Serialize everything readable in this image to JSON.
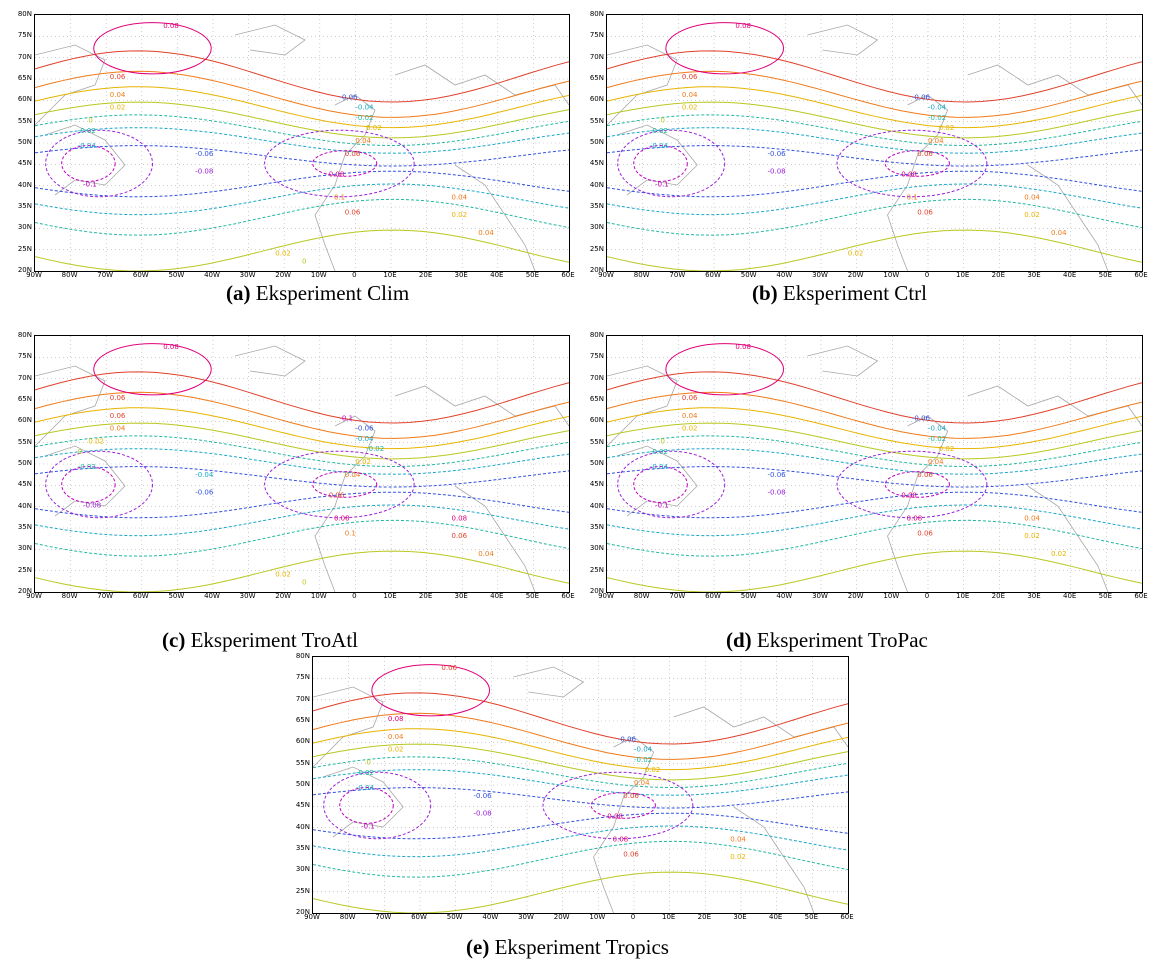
{
  "axes": {
    "lat_labels": [
      "80N",
      "75N",
      "70N",
      "65N",
      "60N",
      "55N",
      "50N",
      "45N",
      "40N",
      "35N",
      "30N",
      "25N",
      "20N"
    ],
    "lon_labels": [
      "90W",
      "80W",
      "70W",
      "60W",
      "50W",
      "40W",
      "30W",
      "20W",
      "10W",
      "0",
      "10E",
      "20E",
      "30E",
      "40E",
      "50E",
      "60E"
    ]
  },
  "contour_colors": {
    "0.08": "#e0007a",
    "0.06": "#e0402a",
    "0.04": "#f07a1a",
    "0.02": "#e8b400",
    "0": "#b8c820",
    "-0.02": "#20b8a0",
    "-0.04": "#18a8c8",
    "-0.06": "#3050e0",
    "-0.08": "#9a20d8",
    "-0.1": "#c000c0"
  },
  "panels": [
    {
      "id": "a",
      "tag": "(a)",
      "title": "Eksperiment Clim",
      "labels": [
        "0.08",
        "0.06",
        "0.04",
        "0.02",
        "0",
        "-0.02",
        "-0.04",
        "-0.06",
        "-0.08",
        "-0.1",
        "-0.06",
        "-0.04",
        "-0.02",
        "0.02",
        "0.04",
        "0.06",
        "0.08",
        "0.1",
        "0.06",
        "0.04",
        "0.02",
        "0.04",
        "0.02",
        "0"
      ]
    },
    {
      "id": "b",
      "tag": "(b)",
      "title": "Eksperiment Ctrl",
      "labels": [
        "0.08",
        "0.06",
        "0.04",
        "0.02",
        "0",
        "-0.02",
        "-0.04",
        "-0.06",
        "-0.08",
        "-0.1",
        "-0.06",
        "-0.04",
        "-0.02",
        "0.02",
        "0.04",
        "0.06",
        "0.08",
        "0.1",
        "0.06",
        "0.04",
        "0.02",
        "0.04",
        "0.02"
      ]
    },
    {
      "id": "c",
      "tag": "(c)",
      "title": "Eksperiment TroAtl",
      "labels": [
        "0.08",
        "0.06",
        "0.06",
        "0.04",
        "0.02",
        "0",
        "-0.02",
        "-0.04",
        "-0.06",
        "-0.08",
        "-0.1",
        "-0.06",
        "-0.04",
        "-0.02",
        "0.02",
        "0.04",
        "0.06",
        "0.08",
        "0.1",
        "0.08",
        "0.06",
        "0.04",
        "0.02",
        "0"
      ]
    },
    {
      "id": "d",
      "tag": "(d)",
      "title": "Eksperiment TroPac",
      "labels": [
        "0.08",
        "0.06",
        "0.04",
        "0.02",
        "0",
        "-0.02",
        "-0.04",
        "-0.06",
        "-0.08",
        "-0.1",
        "-0.06",
        "-0.04",
        "-0.02",
        "0.02",
        "0.04",
        "0.06",
        "0.08",
        "0.08",
        "0.06",
        "0.04",
        "0.02",
        "0.02"
      ]
    },
    {
      "id": "e",
      "tag": "(e)",
      "title": "Eksperiment Tropics",
      "labels": [
        "0.06",
        "0.08",
        "0.04",
        "0.02",
        "0",
        "-0.02",
        "-0.04",
        "-0.06",
        "-0.08",
        "-0.1",
        "-0.06",
        "-0.04",
        "-0.02",
        "0.02",
        "0.04",
        "0.06",
        "0.08",
        "0.08",
        "0.06",
        "0.04",
        "0.02"
      ]
    }
  ]
}
